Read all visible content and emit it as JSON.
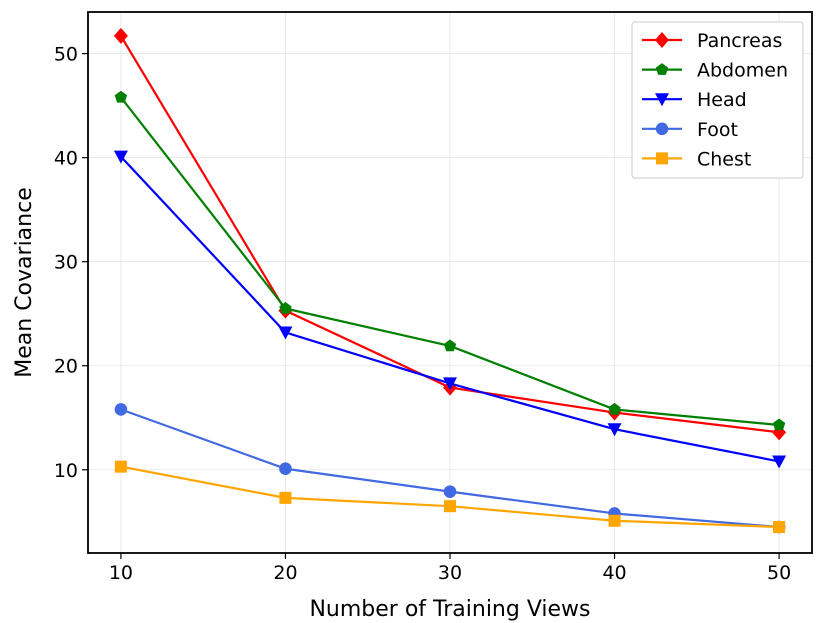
{
  "chart_data": {
    "type": "line",
    "title": "",
    "xlabel": "Number of Training Views",
    "ylabel": "Mean Covariance",
    "x": [
      10,
      20,
      30,
      40,
      50
    ],
    "xlim": [
      8,
      52
    ],
    "ylim": [
      2.0,
      54.0
    ],
    "xticks": [
      10,
      20,
      30,
      40,
      50
    ],
    "yticks": [
      10,
      20,
      30,
      40,
      50
    ],
    "grid": true,
    "legend_position": "top-right",
    "series": [
      {
        "name": "Pancreas",
        "color": "#ff0000",
        "marker": "diamond",
        "values": [
          51.7,
          25.3,
          17.9,
          15.5,
          13.6
        ]
      },
      {
        "name": "Abdomen",
        "color": "#008000",
        "marker": "pentagon",
        "values": [
          45.8,
          25.5,
          21.9,
          15.8,
          14.3
        ]
      },
      {
        "name": "Head",
        "color": "#0000ff",
        "marker": "triangle-down",
        "values": [
          40.1,
          23.2,
          18.3,
          13.9,
          10.8
        ]
      },
      {
        "name": "Foot",
        "color": "#4169e1",
        "marker": "circle",
        "values": [
          15.8,
          10.1,
          7.9,
          5.8,
          4.5
        ]
      },
      {
        "name": "Chest",
        "color": "#ffa500",
        "marker": "square",
        "values": [
          10.3,
          7.3,
          6.5,
          5.1,
          4.5
        ]
      }
    ]
  }
}
